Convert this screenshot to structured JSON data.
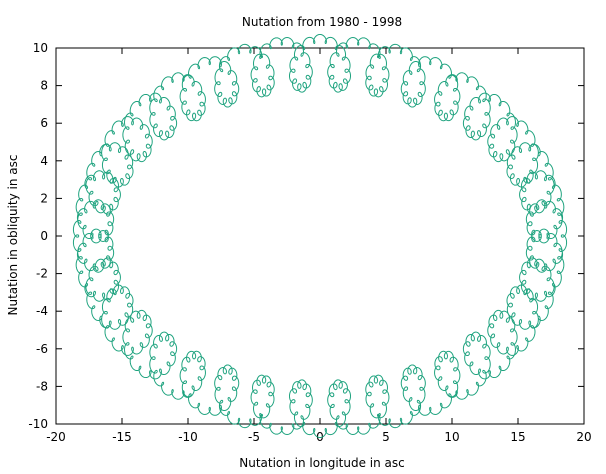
{
  "chart_data": {
    "type": "line",
    "title": "Nutation from 1980 - 1998",
    "xlabel": "Nutation in longitude in asc",
    "ylabel": "Nutation in obliquity in asc",
    "xlim": [
      -20,
      20
    ],
    "ylim": [
      -10,
      10
    ],
    "x_ticks": [
      -20,
      -15,
      -10,
      -5,
      0,
      5,
      10,
      15,
      20
    ],
    "y_ticks": [
      -10,
      -8,
      -6,
      -4,
      -2,
      0,
      2,
      4,
      6,
      8,
      10
    ],
    "grid": false,
    "legend": "none",
    "series": [
      {
        "color": "#1fa37f",
        "curve": {
          "description_units": "arcseconds",
          "main_amplitude_x": 17.2,
          "main_amplitude_y": 9.2,
          "semiannual_amplitude": 1.3,
          "semiannual_cycles_per_main": 37,
          "fortnightly_amplitude": 0.22,
          "fortnightly_cycles_per_main": 463,
          "main_cycles": 1
        }
      }
    ]
  }
}
